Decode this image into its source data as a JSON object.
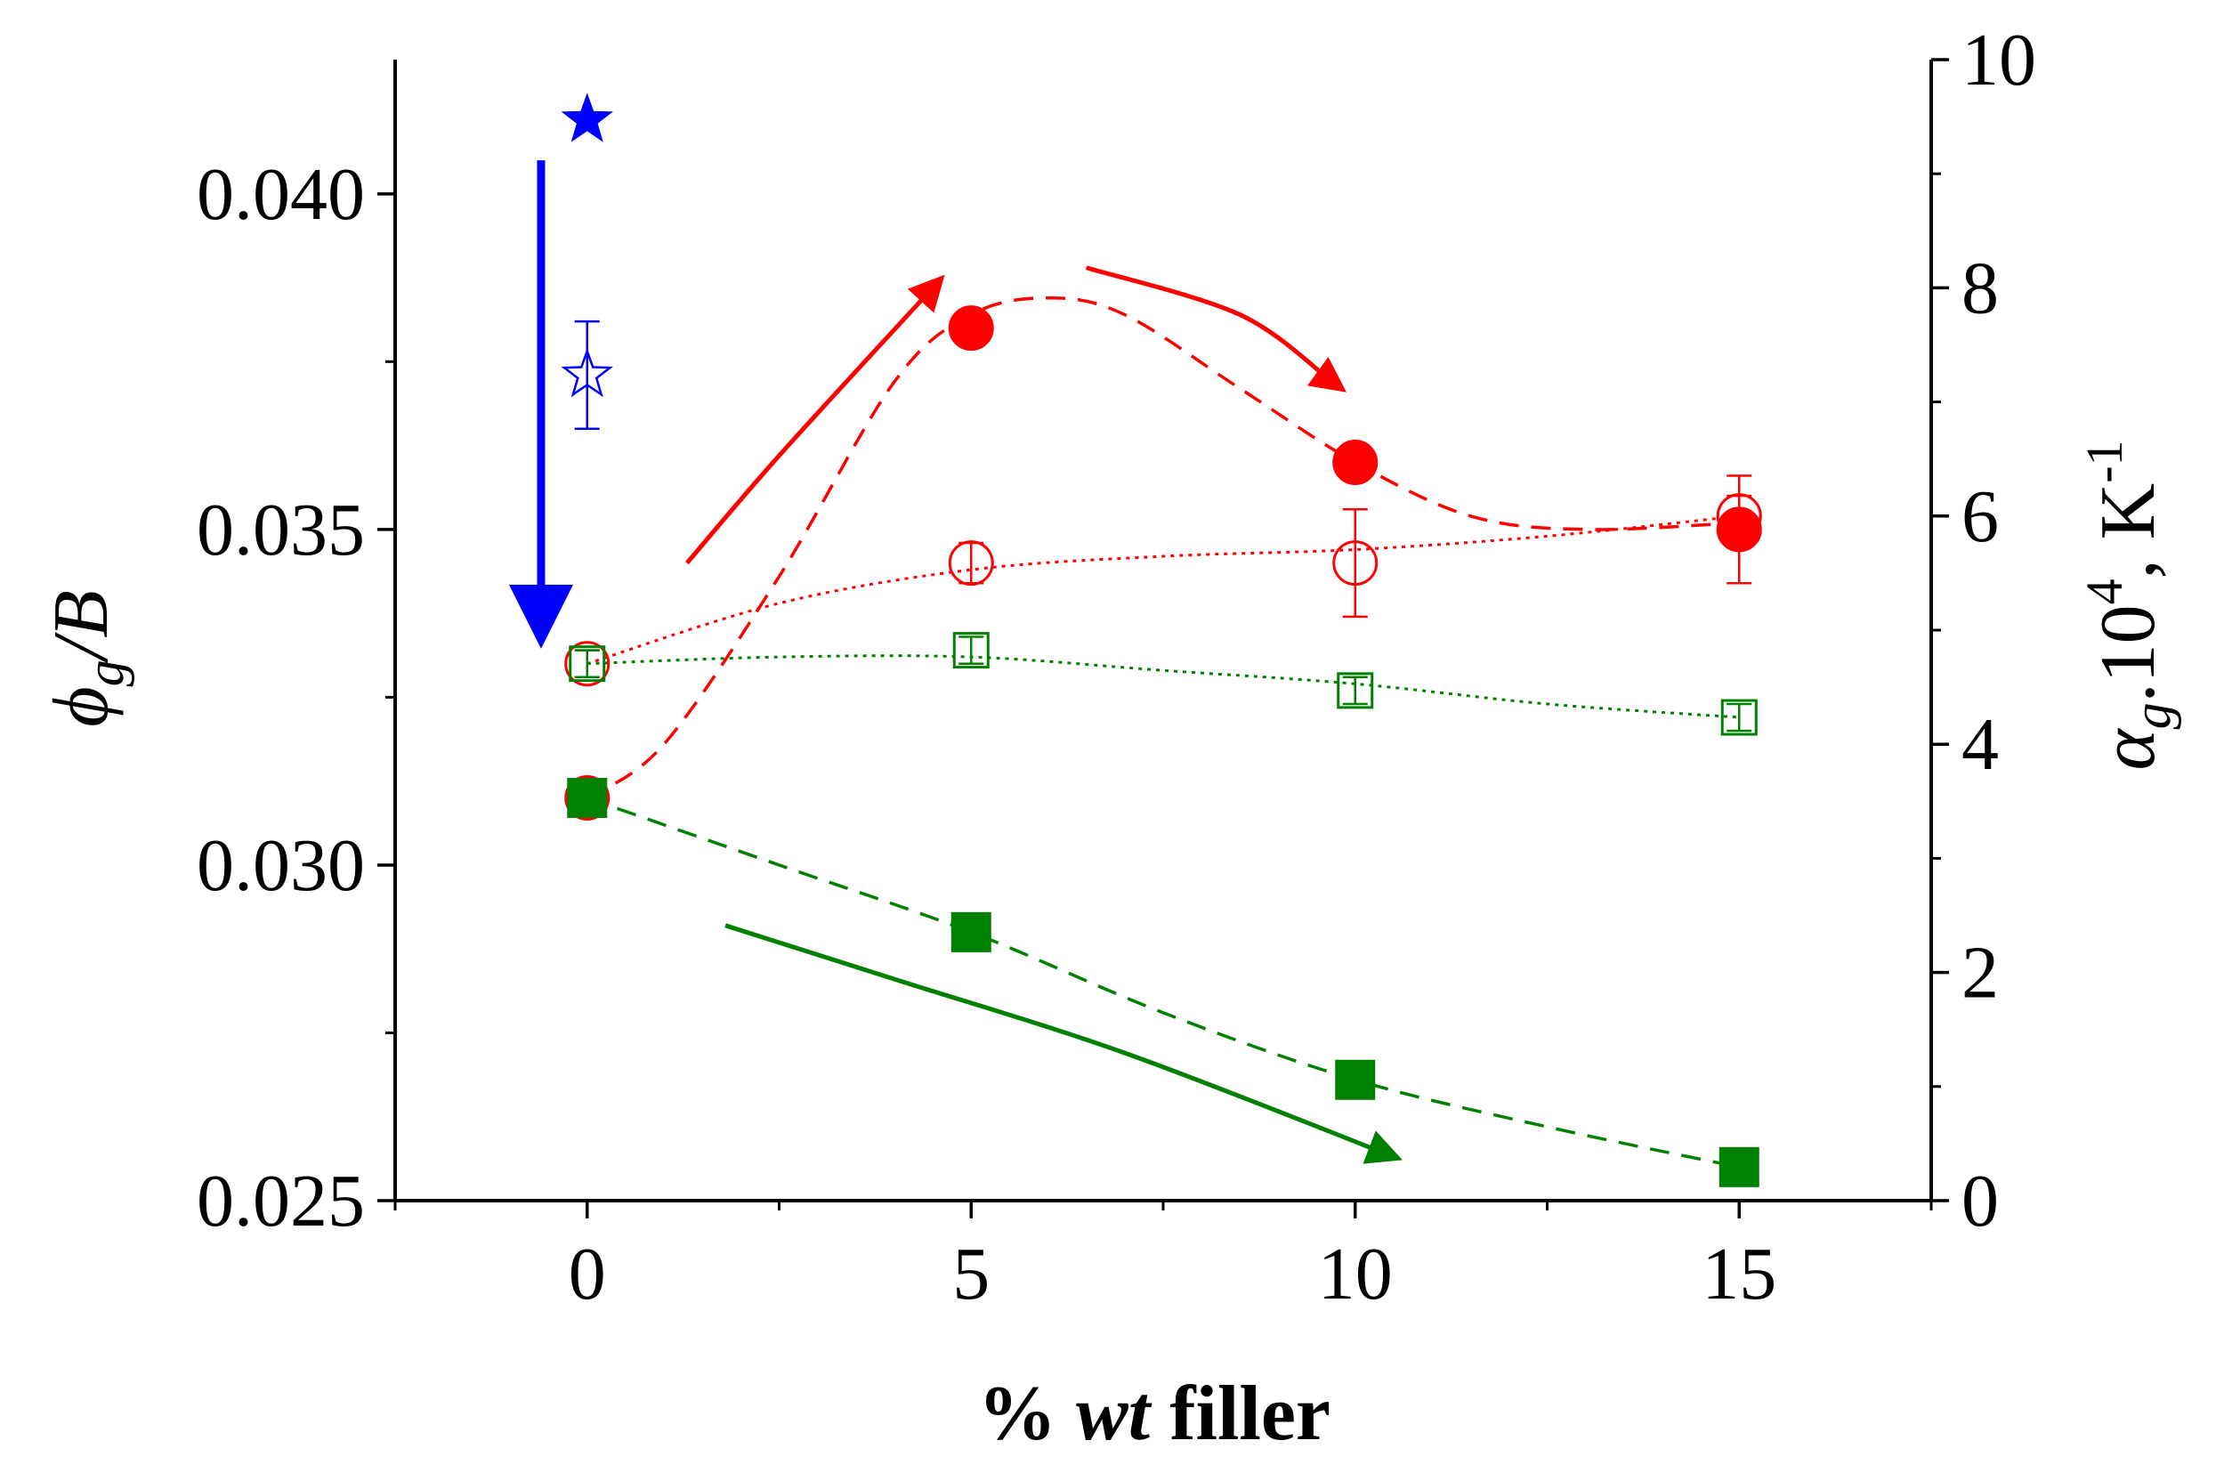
{
  "chart_data": {
    "type": "scatter",
    "xlabel": {
      "pct": "%",
      "wt": "wt",
      "rest": "filler"
    },
    "ylabel_left": {
      "phi": "ϕ",
      "g": "g",
      "rest": "/B"
    },
    "ylabel_right": {
      "alpha": "α",
      "g": "g",
      "mid": ".10",
      "exp": "4",
      "unit": ", K",
      "unit_exp": "-1"
    },
    "xlim": [
      -2.5,
      17.5
    ],
    "ylim_left": [
      0.025,
      0.042
    ],
    "ylim_right": [
      0,
      10
    ],
    "x_ticks": [
      0,
      5,
      10,
      15
    ],
    "x_tick_labels": [
      "0",
      "5",
      "10",
      "15"
    ],
    "y_left_ticks": [
      0.025,
      0.03,
      0.035,
      0.04
    ],
    "y_left_tick_labels": [
      "0.025",
      "0.030",
      "0.035",
      "0.040"
    ],
    "y_right_ticks": [
      0,
      2,
      4,
      6,
      8,
      10
    ],
    "y_right_tick_labels": [
      "0",
      "2",
      "4",
      "6",
      "8",
      "10"
    ],
    "series": [
      {
        "name": "red-filled-circle",
        "axis": "left",
        "marker": "circle",
        "filled": true,
        "color": "#ff0000",
        "x": [
          0,
          5,
          10,
          15
        ],
        "y": [
          0.031,
          0.038,
          0.036,
          0.035
        ],
        "err": [
          0,
          0,
          0,
          0.0008
        ]
      },
      {
        "name": "red-open-circle",
        "axis": "left",
        "marker": "circle",
        "filled": false,
        "color": "#ff0000",
        "x": [
          0,
          5,
          10,
          15
        ],
        "y": [
          0.033,
          0.0345,
          0.0345,
          0.0352
        ],
        "err": [
          0.0002,
          0.0003,
          0.0008,
          0.0003
        ]
      },
      {
        "name": "green-filled-square",
        "axis": "left",
        "marker": "square",
        "filled": true,
        "color": "#008000",
        "x": [
          0,
          5,
          10,
          15
        ],
        "y": [
          0.031,
          0.029,
          0.0268,
          0.0255
        ],
        "err": [
          0,
          0,
          0,
          0
        ]
      },
      {
        "name": "green-open-square",
        "axis": "left",
        "marker": "square",
        "filled": false,
        "color": "#008000",
        "x": [
          0,
          5,
          10,
          15
        ],
        "y": [
          0.033,
          0.0332,
          0.0326,
          0.0322
        ],
        "err": [
          0.0002,
          0.0002,
          0.0002,
          0.0002
        ]
      },
      {
        "name": "blue-filled-star",
        "axis": "left",
        "marker": "star",
        "filled": true,
        "color": "#0000ff",
        "x": [
          0
        ],
        "y": [
          0.0411
        ],
        "err": [
          0
        ]
      },
      {
        "name": "blue-open-star",
        "axis": "left",
        "marker": "star",
        "filled": false,
        "color": "#0000ff",
        "x": [
          0
        ],
        "y": [
          0.0373
        ],
        "err": [
          0.0008
        ]
      }
    ],
    "fit_lines": [
      {
        "name": "red-dashed-fit",
        "color": "#ff0000",
        "style": "dashed",
        "points": [
          [
            0,
            0.031
          ],
          [
            1,
            0.0318
          ],
          [
            2.5,
            0.0343
          ],
          [
            4,
            0.0372
          ],
          [
            5,
            0.0382
          ],
          [
            6,
            0.03845
          ],
          [
            7,
            0.0382
          ],
          [
            8.5,
            0.0371
          ],
          [
            10,
            0.036
          ],
          [
            11.5,
            0.0352
          ],
          [
            13,
            0.035
          ],
          [
            15,
            0.0351
          ]
        ]
      },
      {
        "name": "red-dotted-fit",
        "color": "#ff0000",
        "style": "dotted",
        "points": [
          [
            0,
            0.033
          ],
          [
            2.5,
            0.0339
          ],
          [
            5,
            0.0344
          ],
          [
            7.5,
            0.0346
          ],
          [
            10,
            0.0347
          ],
          [
            12.5,
            0.0349
          ],
          [
            15,
            0.0352
          ]
        ]
      },
      {
        "name": "green-dotted-fit",
        "color": "#008000",
        "style": "dotted",
        "points": [
          [
            0,
            0.033
          ],
          [
            2.5,
            0.0331
          ],
          [
            5,
            0.0331
          ],
          [
            7.5,
            0.0329
          ],
          [
            10,
            0.0327
          ],
          [
            12.5,
            0.0324
          ],
          [
            15,
            0.0322
          ]
        ]
      },
      {
        "name": "green-dashed-fit",
        "color": "#008000",
        "style": "dashed",
        "points": [
          [
            0,
            0.031
          ],
          [
            2.5,
            0.03
          ],
          [
            5,
            0.029
          ],
          [
            7.5,
            0.0278
          ],
          [
            10,
            0.0268
          ],
          [
            12.5,
            0.0261
          ],
          [
            15,
            0.0255
          ]
        ]
      }
    ],
    "annotation_arrows": [
      {
        "name": "blue-down-arrow",
        "color": "#0000ff",
        "points": [
          [
            -0.6,
            0.0405
          ],
          [
            -0.6,
            0.0337
          ]
        ]
      },
      {
        "name": "red-up-arrow",
        "color": "#ff0000",
        "points": [
          [
            1.3,
            0.0345
          ],
          [
            2.5,
            0.0361
          ],
          [
            4.5,
            0.0386
          ]
        ]
      },
      {
        "name": "red-down-arrow",
        "color": "#ff0000",
        "points": [
          [
            6.5,
            0.0389
          ],
          [
            8.5,
            0.0382
          ],
          [
            9.7,
            0.0372
          ]
        ]
      },
      {
        "name": "green-down-arrow",
        "color": "#008000",
        "points": [
          [
            1.8,
            0.0291
          ],
          [
            4,
            0.0283
          ],
          [
            7,
            0.0272
          ],
          [
            10.4,
            0.0257
          ]
        ]
      }
    ]
  }
}
